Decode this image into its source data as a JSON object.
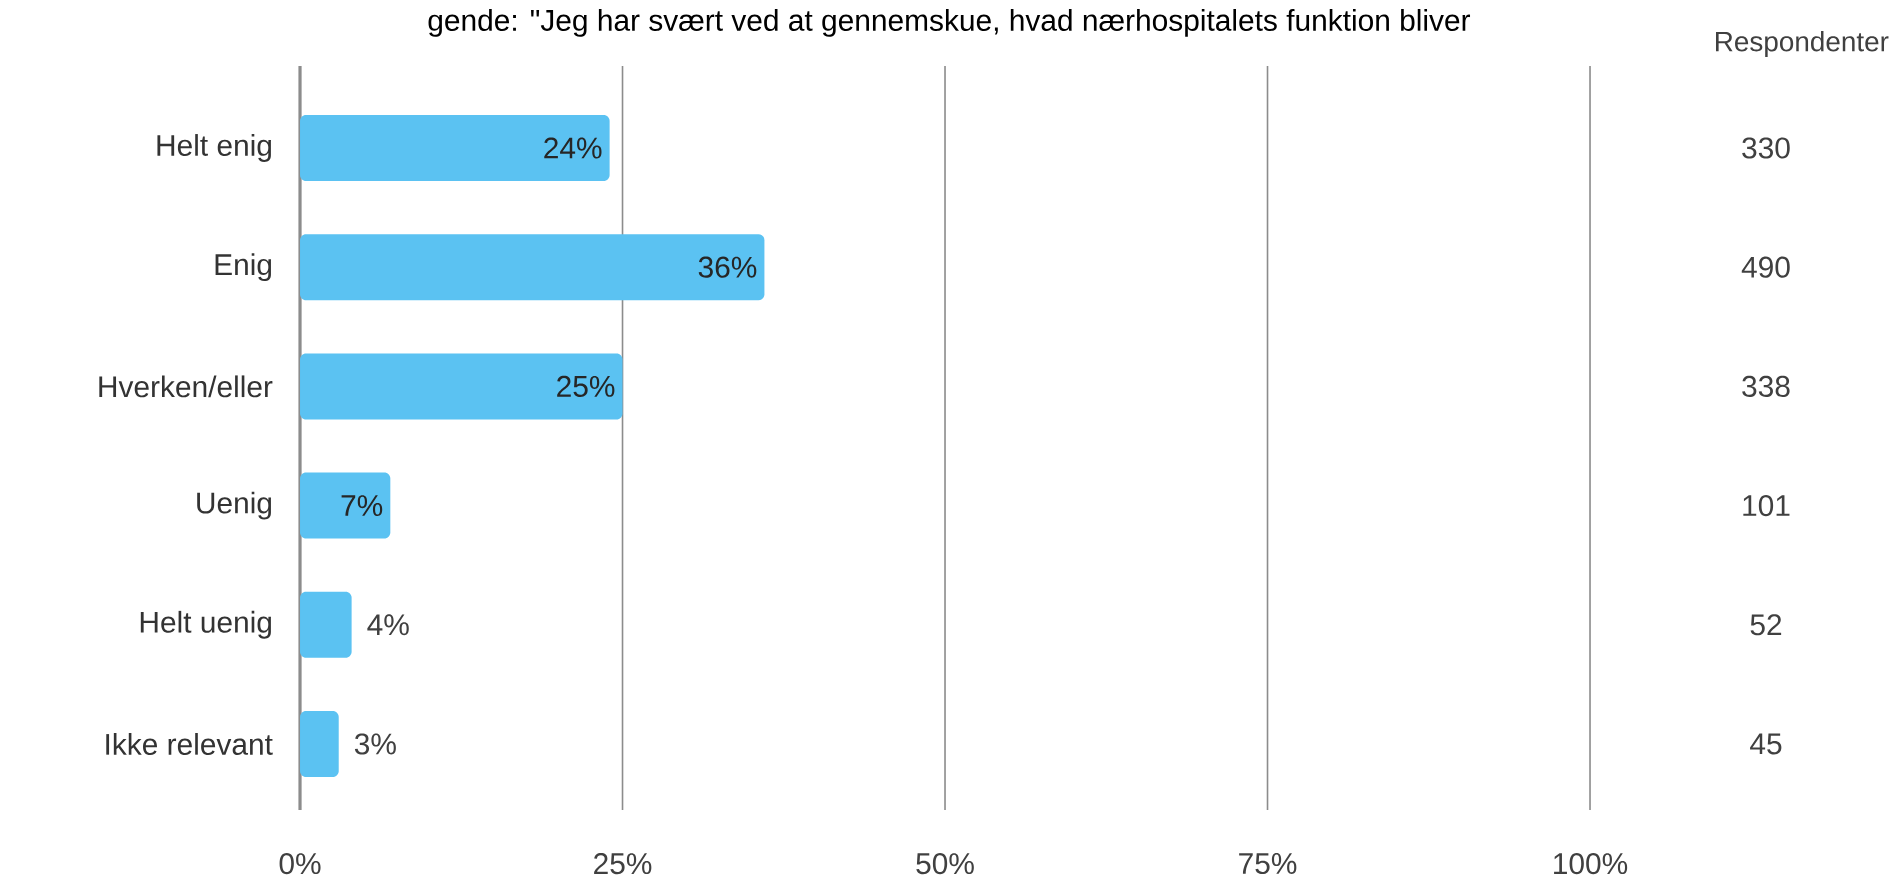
{
  "chart_data": {
    "type": "bar",
    "orientation": "horizontal",
    "title": "gende: \"Jeg har svært ved at gennemskue, hvad nærhospitalets funktion bliver",
    "categories": [
      "Helt enig",
      "Enig",
      "Hverken/eller",
      "Uenig",
      "Helt uenig",
      "Ikke relevant"
    ],
    "values": [
      24,
      36,
      25,
      7,
      4,
      3
    ],
    "value_labels": [
      "24%",
      "36%",
      "25%",
      "7%",
      "4%",
      "3%"
    ],
    "color": "#5bc2f2",
    "xlim": [
      0,
      100
    ],
    "xticks": [
      {
        "value": 0,
        "label": "0%"
      },
      {
        "value": 25,
        "label": "25%"
      },
      {
        "value": 50,
        "label": "50%"
      },
      {
        "value": 75,
        "label": "75%"
      },
      {
        "value": 100,
        "label": "100%"
      }
    ],
    "grid": "x",
    "annotations": [
      "Respondenter",
      "330",
      "490",
      "338",
      "101",
      "52",
      "45"
    ]
  }
}
